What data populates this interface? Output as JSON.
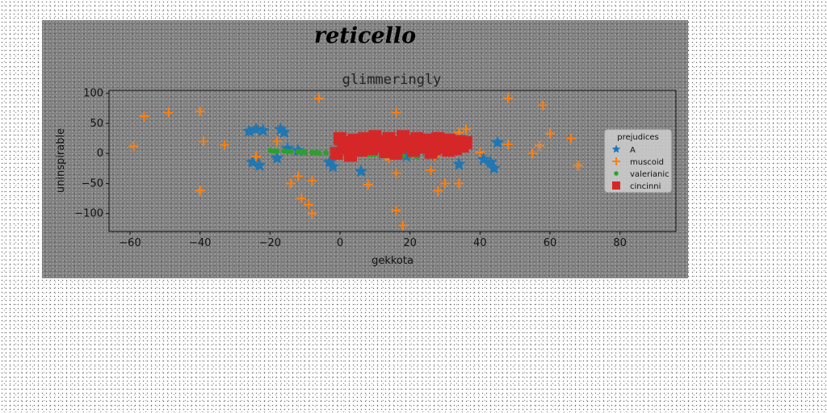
{
  "chart_data": {
    "type": "scatter",
    "suptitle": "reticello",
    "title": "glimmeringly",
    "xlabel": "gekkota",
    "ylabel": "uninspirable",
    "xlim": [
      -66,
      96
    ],
    "ylim": [
      -130,
      105
    ],
    "xticks": [
      -60,
      -40,
      -20,
      0,
      20,
      40,
      60,
      80
    ],
    "yticks": [
      -100,
      -50,
      0,
      50,
      100
    ],
    "legend": {
      "title": "prejudices",
      "placement": "center-right"
    },
    "series": [
      {
        "name": "A",
        "color": "#1f77b4",
        "marker": "star",
        "points": [
          [
            -26,
            37
          ],
          [
            -24,
            40
          ],
          [
            -22,
            38
          ],
          [
            -17,
            40
          ],
          [
            -16,
            35
          ],
          [
            -15,
            8
          ],
          [
            -12,
            5
          ],
          [
            -25,
            -15
          ],
          [
            -23,
            -20
          ],
          [
            -18,
            -8
          ],
          [
            -3,
            -15
          ],
          [
            -2,
            -22
          ],
          [
            6,
            -30
          ],
          [
            34,
            -18
          ],
          [
            41,
            -10
          ],
          [
            43,
            -15
          ],
          [
            44,
            -25
          ],
          [
            45,
            18
          ],
          [
            19,
            -5
          ]
        ]
      },
      {
        "name": "muscoid",
        "color": "#ff7f0e",
        "marker": "plus",
        "points": [
          [
            -59,
            12
          ],
          [
            -56,
            62
          ],
          [
            -49,
            68
          ],
          [
            -40,
            70
          ],
          [
            -39,
            20
          ],
          [
            -33,
            14
          ],
          [
            -40,
            -62
          ],
          [
            -24,
            -5
          ],
          [
            -18,
            20
          ],
          [
            -14,
            -50
          ],
          [
            -12,
            -38
          ],
          [
            -11,
            -75
          ],
          [
            -9,
            -85
          ],
          [
            -8,
            -100
          ],
          [
            -8,
            -45
          ],
          [
            -6,
            92
          ],
          [
            8,
            -52
          ],
          [
            16,
            -95
          ],
          [
            16,
            -33
          ],
          [
            18,
            -120
          ],
          [
            16,
            68
          ],
          [
            14,
            -10
          ],
          [
            26,
            -28
          ],
          [
            28,
            -62
          ],
          [
            27,
            -5
          ],
          [
            30,
            -50
          ],
          [
            34,
            -50
          ],
          [
            34,
            35
          ],
          [
            36,
            40
          ],
          [
            40,
            2
          ],
          [
            48,
            15
          ],
          [
            48,
            92
          ],
          [
            55,
            0
          ],
          [
            57,
            13
          ],
          [
            58,
            80
          ],
          [
            60,
            33
          ],
          [
            66,
            25
          ],
          [
            68,
            -20
          ]
        ]
      },
      {
        "name": "valerianic",
        "color": "#2ca02c",
        "marker": "circle",
        "points": [
          [
            -20,
            5
          ],
          [
            -18,
            4
          ],
          [
            -16,
            4
          ],
          [
            -14,
            3
          ],
          [
            -12,
            3
          ],
          [
            -10,
            2
          ],
          [
            -8,
            2
          ],
          [
            -6,
            1
          ],
          [
            -4,
            1
          ],
          [
            -2,
            0
          ],
          [
            0,
            0
          ],
          [
            2,
            -1
          ],
          [
            4,
            -1
          ],
          [
            6,
            -2
          ],
          [
            8,
            -2
          ],
          [
            10,
            -2
          ],
          [
            12,
            -3
          ],
          [
            14,
            -3
          ],
          [
            16,
            -3
          ],
          [
            18,
            -4
          ],
          [
            20,
            -4
          ],
          [
            22,
            -5
          ],
          [
            -19,
            4
          ],
          [
            -15,
            3
          ],
          [
            -11,
            2
          ],
          [
            -7,
            1
          ],
          [
            1,
            -1
          ],
          [
            9,
            -2
          ],
          [
            15,
            -3
          ]
        ]
      },
      {
        "name": "cincinni",
        "color": "#d62728",
        "marker": "square",
        "points": [
          [
            0,
            25
          ],
          [
            2,
            10
          ],
          [
            -1,
            0
          ],
          [
            3,
            -3
          ],
          [
            4,
            22
          ],
          [
            5,
            15
          ],
          [
            6,
            5
          ],
          [
            7,
            25
          ],
          [
            8,
            18
          ],
          [
            9,
            8
          ],
          [
            10,
            28
          ],
          [
            11,
            20
          ],
          [
            12,
            12
          ],
          [
            13,
            3
          ],
          [
            14,
            25
          ],
          [
            15,
            18
          ],
          [
            17,
            10
          ],
          [
            18,
            28
          ],
          [
            19,
            20
          ],
          [
            20,
            12
          ],
          [
            21,
            5
          ],
          [
            22,
            25
          ],
          [
            23,
            18
          ],
          [
            24,
            10
          ],
          [
            25,
            22
          ],
          [
            26,
            15
          ],
          [
            27,
            8
          ],
          [
            28,
            25
          ],
          [
            29,
            18
          ],
          [
            30,
            10
          ],
          [
            31,
            22
          ],
          [
            32,
            15
          ],
          [
            33,
            8
          ],
          [
            34,
            20
          ],
          [
            35,
            12
          ],
          [
            36,
            18
          ],
          [
            1,
            18
          ],
          [
            16,
            0
          ],
          [
            26,
            2
          ],
          [
            31,
            5
          ]
        ]
      }
    ]
  }
}
